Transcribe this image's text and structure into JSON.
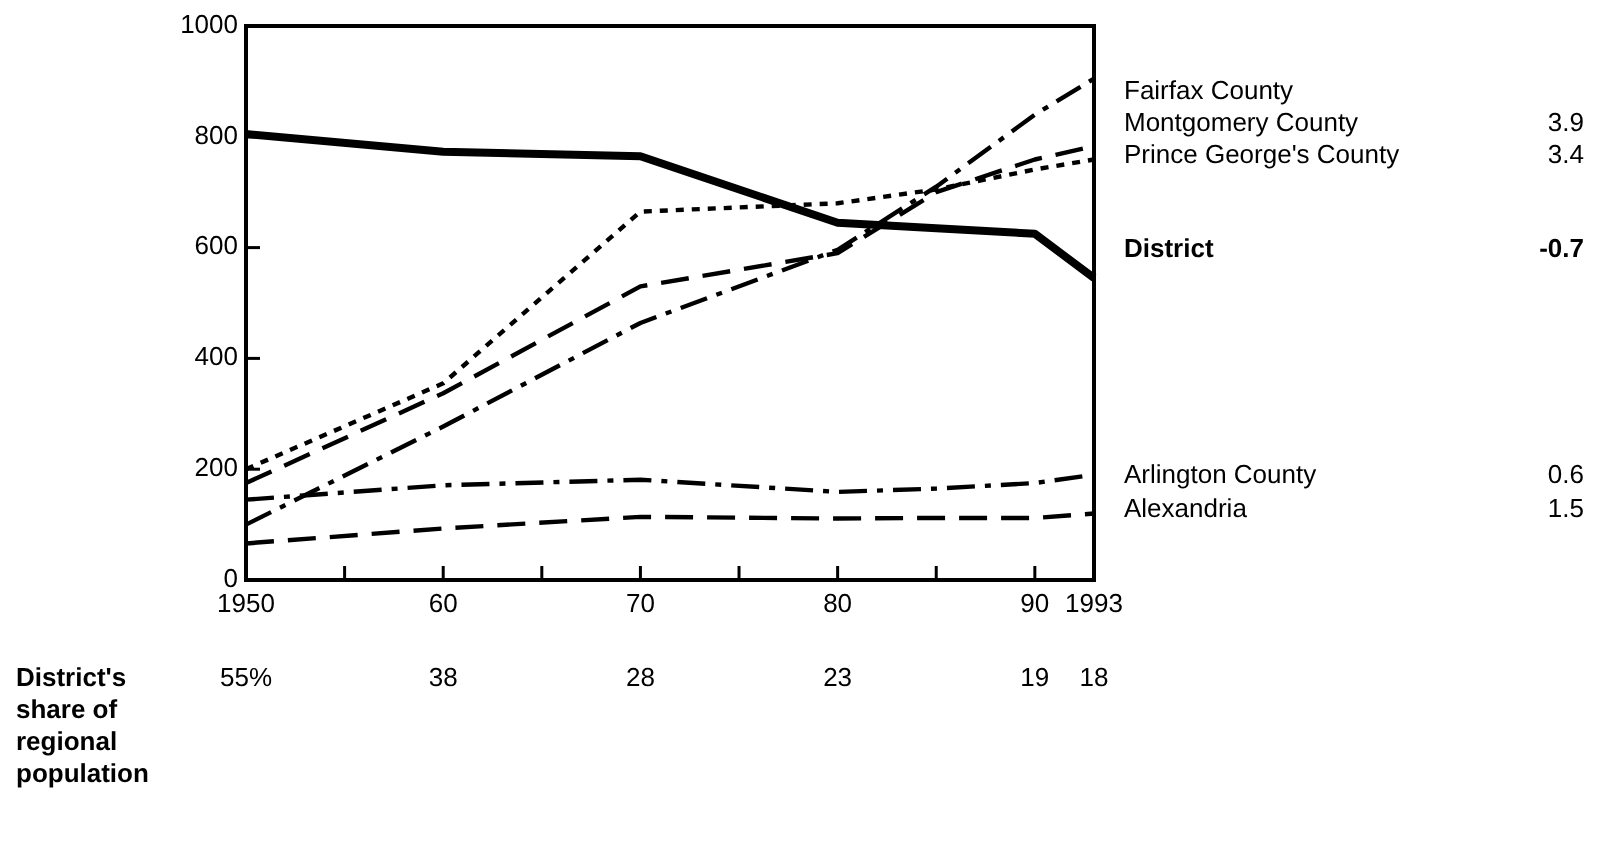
{
  "chart_data": {
    "type": "line",
    "x": [
      1950,
      1960,
      1970,
      1980,
      1985,
      1990,
      1993
    ],
    "xlim": [
      1950,
      1993
    ],
    "ylim": [
      0,
      1000
    ],
    "xticks": [
      1950,
      {
        "value": 1955,
        "label": null
      },
      {
        "value": 1960,
        "label": "60"
      },
      {
        "value": 1965,
        "label": null
      },
      {
        "value": 1970,
        "label": "70"
      },
      {
        "value": 1975,
        "label": null
      },
      {
        "value": 1980,
        "label": "80"
      },
      {
        "value": 1985,
        "label": null
      },
      {
        "value": 1990,
        "label": "90"
      },
      1993
    ],
    "yticks": [
      0,
      200,
      400,
      600,
      800,
      1000
    ],
    "grid": false,
    "legend": false,
    "marker": "none",
    "series": [
      {
        "name": "Fairfax County",
        "color": "#000000",
        "line_style": "dashdot",
        "values": [
          100,
          277,
          464,
          596,
          710,
          840,
          905
        ]
      },
      {
        "name": "Montgomery County",
        "color": "#000000",
        "line_style": "dashed",
        "values": [
          175,
          337,
          530,
          590,
          700,
          759,
          783
        ]
      },
      {
        "name": "Prince George's County",
        "color": "#000000",
        "line_style": "dotted",
        "values": [
          200,
          355,
          665,
          680,
          705,
          741,
          759
        ]
      },
      {
        "name": "District",
        "color": "#000000",
        "line_style": "solid",
        "values": [
          805,
          773,
          765,
          645,
          635,
          625,
          545
        ]
      },
      {
        "name": "Arlington County",
        "color": "#000000",
        "line_style": "dashdot",
        "values": [
          145,
          171,
          181,
          159,
          165,
          175,
          190
        ]
      },
      {
        "name": "Alexandria",
        "color": "#000000",
        "line_style": "dashed",
        "values": [
          66,
          93,
          114,
          111,
          112,
          112,
          120
        ]
      }
    ],
    "annotations": [
      "3.9",
      "3.4",
      "-0.7",
      "0.6",
      "1.5",
      "District's share of regional population",
      "55%",
      "38",
      "28",
      "23",
      "19",
      "18"
    ]
  }
}
